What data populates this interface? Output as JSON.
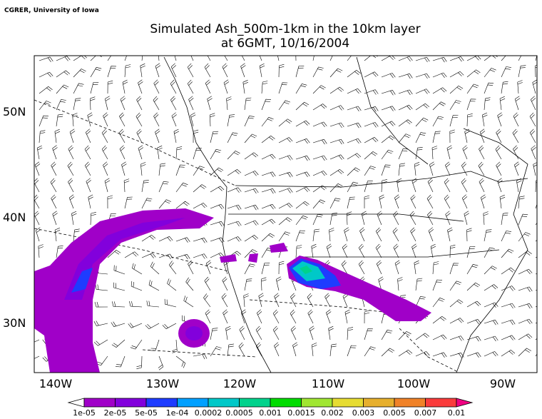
{
  "header": {
    "credit": "CGRER, University of Iowa",
    "title": "Simulated Ash_500m-1km in the 10km layer",
    "subtitle": "at 6GMT, 10/16/2004"
  },
  "map": {
    "lat_labels": [
      "50N",
      "40N",
      "30N"
    ],
    "lon_labels": [
      "140W",
      "130W",
      "120W",
      "110W",
      "100W",
      "90W"
    ]
  },
  "colorbar": {
    "labels": [
      "1e-05",
      "2e-05",
      "5e-05",
      "1e-04",
      "0.0002",
      "0.0005",
      "0.001",
      "0.0015",
      "0.002",
      "0.003",
      "0.005",
      "0.007",
      "0.01"
    ],
    "colors": [
      "#ffffff",
      "#a000c8",
      "#8200dc",
      "#1e3cff",
      "#00a0ff",
      "#00c8c8",
      "#00d28c",
      "#00dc00",
      "#a0e632",
      "#e6dc32",
      "#e6af2d",
      "#f08228",
      "#fa3c3c",
      "#f00082"
    ]
  }
}
